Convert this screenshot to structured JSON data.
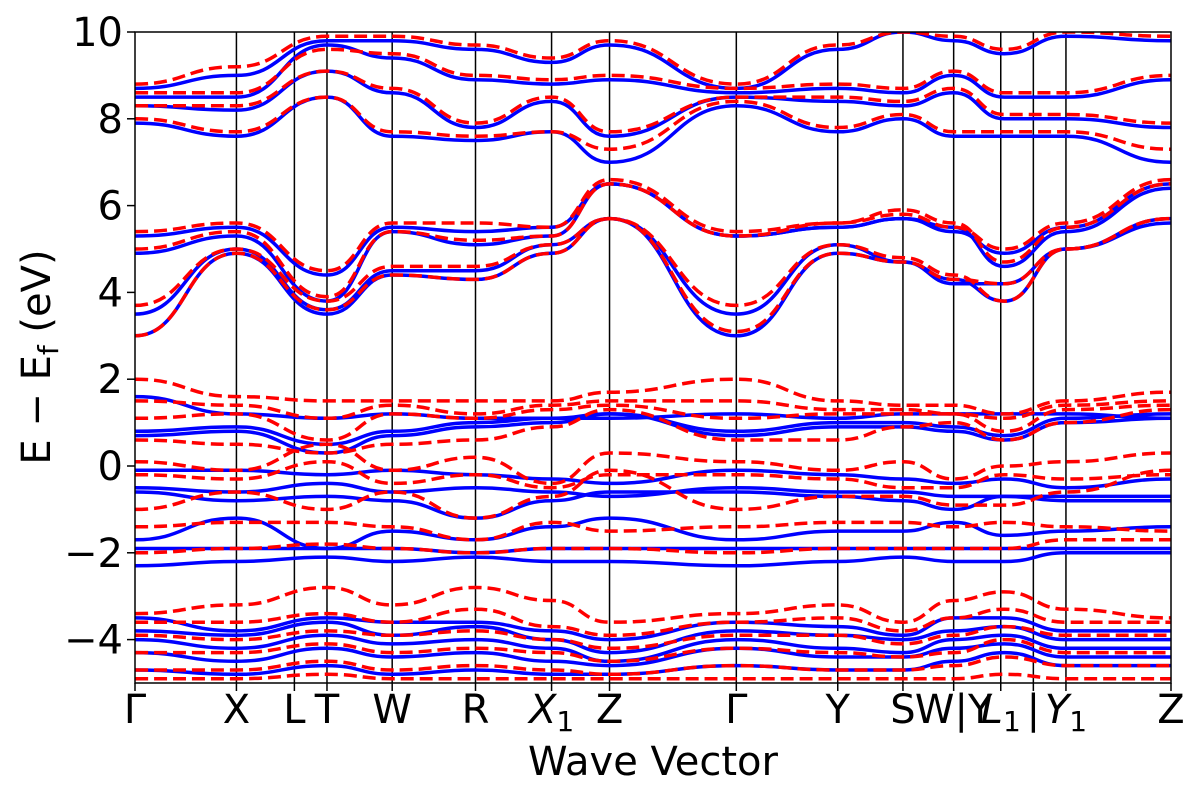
{
  "chart_data": {
    "type": "line",
    "xlabel": "Wave Vector",
    "ylabel": "E − E_f (eV)",
    "ylabel_parts": {
      "pre": "E − E",
      "sub": "f",
      "post": " (eV)"
    },
    "ylim": [
      -5,
      10
    ],
    "yticks": [
      -4,
      -2,
      0,
      2,
      4,
      6,
      8,
      10
    ],
    "ytick_labels": [
      "−4",
      "−2",
      "0",
      "2",
      "4",
      "6",
      "8",
      "10"
    ],
    "xlim": [
      0,
      14.3
    ],
    "kpoints": [
      {
        "label": "Γ",
        "pos": 0.0
      },
      {
        "label": "X",
        "pos": 1.4
      },
      {
        "label": "L",
        "pos": 2.2
      },
      {
        "label": "T",
        "pos": 2.65
      },
      {
        "label": "W",
        "pos": 3.55
      },
      {
        "label": "R",
        "pos": 4.7
      },
      {
        "label": "X",
        "sub": "1",
        "pos": 5.75
      },
      {
        "label": "Z",
        "pos": 6.55
      },
      {
        "label": "Γ",
        "pos": 8.3
      },
      {
        "label": "Y",
        "pos": 9.7
      },
      {
        "label": "S",
        "pos": 10.6
      },
      {
        "label": "W|Y",
        "pos": 11.3
      },
      {
        "label": "L",
        "sub": "1",
        "pos": 11.95
      },
      {
        "label": "|",
        "pos": 12.4
      },
      {
        "label": "Y",
        "sub": "1",
        "pos": 12.85
      },
      {
        "label": "Z",
        "pos": 14.3
      }
    ],
    "series": [
      {
        "color": "#0000ff",
        "dash": "solid"
      },
      {
        "color": "#ff0000",
        "dash": "dashed"
      }
    ],
    "band_anchors": [
      0,
      1.4,
      2.65,
      3.55,
      4.7,
      5.75,
      6.55,
      8.3,
      9.7,
      10.6,
      11.3,
      12.0,
      12.85,
      14.3
    ],
    "blue_bands": [
      [
        3.0,
        4.9,
        3.5,
        4.4,
        4.3,
        4.9,
        5.7,
        3.0,
        4.9,
        4.7,
        4.2,
        4.2,
        5.0,
        5.7
      ],
      [
        3.5,
        5.0,
        3.6,
        4.5,
        4.5,
        5.1,
        5.7,
        3.5,
        5.1,
        4.7,
        4.3,
        3.8,
        5.0,
        5.6
      ],
      [
        4.9,
        5.3,
        3.8,
        5.4,
        5.1,
        5.3,
        6.5,
        5.3,
        5.5,
        5.7,
        5.5,
        4.6,
        5.4,
        6.4
      ],
      [
        5.3,
        5.5,
        4.4,
        5.5,
        5.4,
        5.5,
        6.5,
        5.3,
        5.5,
        5.7,
        5.4,
        4.9,
        5.5,
        6.5
      ],
      [
        7.9,
        7.6,
        8.5,
        7.6,
        7.5,
        7.7,
        7.0,
        8.3,
        7.7,
        8.0,
        7.6,
        7.6,
        7.6,
        7.0
      ],
      [
        8.3,
        8.2,
        9.1,
        8.6,
        7.8,
        8.4,
        7.6,
        8.5,
        8.4,
        8.3,
        8.6,
        8.0,
        8.0,
        7.8
      ],
      [
        8.5,
        8.5,
        9.7,
        9.4,
        8.9,
        8.8,
        8.9,
        8.6,
        8.7,
        8.6,
        9.0,
        8.5,
        8.5,
        8.9
      ],
      [
        8.7,
        9.0,
        9.8,
        9.8,
        9.6,
        9.3,
        9.7,
        8.7,
        9.6,
        10.0,
        9.8,
        9.5,
        9.9,
        9.8
      ],
      [
        0.7,
        0.8,
        0.3,
        0.7,
        0.9,
        1.0,
        1.2,
        0.7,
        0.9,
        0.9,
        0.8,
        0.6,
        1.0,
        1.1
      ],
      [
        0.8,
        0.9,
        0.5,
        0.8,
        1.0,
        1.1,
        1.2,
        0.8,
        1.0,
        1.0,
        0.9,
        0.7,
        1.1,
        1.2
      ],
      [
        1.6,
        1.2,
        1.1,
        1.2,
        1.1,
        1.1,
        1.1,
        1.2,
        1.1,
        1.2,
        1.2,
        1.2,
        1.2,
        1.1
      ],
      [
        -0.1,
        -0.1,
        -0.2,
        -0.1,
        -0.2,
        -0.3,
        -0.4,
        -0.1,
        -0.2,
        -0.3,
        -0.4,
        -0.3,
        -0.5,
        -0.3
      ],
      [
        -0.5,
        -0.6,
        -0.4,
        -0.6,
        -0.5,
        -0.6,
        -0.7,
        -0.5,
        -0.6,
        -0.6,
        -0.7,
        -0.7,
        -0.7,
        -0.7
      ],
      [
        -0.6,
        -0.8,
        -0.7,
        -0.8,
        -1.2,
        -0.8,
        -0.6,
        -0.6,
        -0.7,
        -0.8,
        -1.0,
        -0.7,
        -0.8,
        -0.8
      ],
      [
        -1.7,
        -1.2,
        -1.9,
        -1.5,
        -1.7,
        -1.4,
        -1.2,
        -1.7,
        -1.5,
        -1.5,
        -1.3,
        -1.6,
        -1.5,
        -1.4
      ],
      [
        -1.9,
        -1.9,
        -1.9,
        -1.9,
        -2.0,
        -1.9,
        -1.9,
        -1.9,
        -1.9,
        -1.9,
        -1.9,
        -1.9,
        -1.9,
        -1.9
      ],
      [
        -2.3,
        -2.2,
        -2.1,
        -2.2,
        -2.1,
        -2.2,
        -2.2,
        -2.3,
        -2.2,
        -2.1,
        -2.2,
        -2.2,
        -2.0,
        -2.0
      ],
      [
        -3.5,
        -3.8,
        -3.5,
        -3.6,
        -3.6,
        -3.8,
        -4.0,
        -3.6,
        -3.7,
        -3.9,
        -3.5,
        -3.5,
        -3.8,
        -3.8
      ],
      [
        -3.8,
        -3.9,
        -3.6,
        -3.9,
        -3.7,
        -4.0,
        -4.3,
        -3.8,
        -3.9,
        -4.0,
        -3.8,
        -3.7,
        -4.0,
        -4.0
      ],
      [
        -4.0,
        -4.2,
        -3.9,
        -4.1,
        -4.0,
        -4.2,
        -4.5,
        -4.0,
        -4.2,
        -4.3,
        -4.0,
        -3.9,
        -4.2,
        -4.2
      ],
      [
        -4.3,
        -4.5,
        -4.2,
        -4.4,
        -4.3,
        -4.5,
        -4.6,
        -4.2,
        -4.4,
        -4.4,
        -4.2,
        -4.1,
        -4.4,
        -4.4
      ],
      [
        -4.7,
        -4.8,
        -4.6,
        -4.8,
        -4.7,
        -4.8,
        -4.8,
        -4.6,
        -4.7,
        -4.7,
        -4.5,
        -4.3,
        -4.6,
        -4.6
      ]
    ],
    "red_bands": [
      [
        3.0,
        4.9,
        3.6,
        4.4,
        4.3,
        4.9,
        5.7,
        3.1,
        4.9,
        4.7,
        4.3,
        4.2,
        5.0,
        5.7
      ],
      [
        3.7,
        5.0,
        3.8,
        4.6,
        4.6,
        5.1,
        5.7,
        3.7,
        5.1,
        4.8,
        4.4,
        3.8,
        5.0,
        5.7
      ],
      [
        5.0,
        5.4,
        3.9,
        5.4,
        5.2,
        5.3,
        6.5,
        5.3,
        5.6,
        5.9,
        5.6,
        4.7,
        5.5,
        6.5
      ],
      [
        5.4,
        5.6,
        4.5,
        5.6,
        5.6,
        5.5,
        6.6,
        5.4,
        5.6,
        5.8,
        5.5,
        5.0,
        5.6,
        6.6
      ],
      [
        8.0,
        7.7,
        8.5,
        7.7,
        7.6,
        7.7,
        7.3,
        8.4,
        7.8,
        8.1,
        7.7,
        7.7,
        7.7,
        7.3
      ],
      [
        8.3,
        8.3,
        9.1,
        8.7,
        7.9,
        8.5,
        7.7,
        8.5,
        8.5,
        8.4,
        8.7,
        8.1,
        8.1,
        7.9
      ],
      [
        8.6,
        8.6,
        9.6,
        9.5,
        9.0,
        8.9,
        9.0,
        8.7,
        8.8,
        8.7,
        9.1,
        8.6,
        8.6,
        9.0
      ],
      [
        8.8,
        9.2,
        9.9,
        9.9,
        9.7,
        9.4,
        9.8,
        8.8,
        9.7,
        10.0,
        9.9,
        9.6,
        10.0,
        9.9
      ],
      [
        2.0,
        1.6,
        1.5,
        1.5,
        1.5,
        1.5,
        1.7,
        2.0,
        1.5,
        1.4,
        1.4,
        1.2,
        1.5,
        1.7
      ],
      [
        1.5,
        1.4,
        1.1,
        1.4,
        1.2,
        1.4,
        1.5,
        1.5,
        1.3,
        1.3,
        1.2,
        1.1,
        1.4,
        1.5
      ],
      [
        1.1,
        1.2,
        0.6,
        1.2,
        1.1,
        1.3,
        1.4,
        1.1,
        1.2,
        1.2,
        1.2,
        0.8,
        1.3,
        1.4
      ],
      [
        0.6,
        0.5,
        0.3,
        0.5,
        0.6,
        0.9,
        1.3,
        0.6,
        0.6,
        0.9,
        1.0,
        0.6,
        1.0,
        1.3
      ],
      [
        0.1,
        -0.1,
        0.5,
        -0.1,
        0.2,
        -0.4,
        0.3,
        0.1,
        -0.1,
        0.1,
        -0.3,
        0.0,
        0.1,
        0.3
      ],
      [
        -0.2,
        -0.3,
        0.1,
        -0.4,
        -0.2,
        -0.5,
        -0.2,
        -0.2,
        -0.3,
        -0.5,
        -0.5,
        -0.2,
        -0.3,
        -0.2
      ],
      [
        -1.0,
        -0.6,
        -1.0,
        -0.6,
        -1.2,
        -0.7,
        -0.1,
        -1.0,
        -0.7,
        -0.7,
        -0.9,
        -0.9,
        -0.6,
        -0.1
      ],
      [
        -1.4,
        -1.3,
        -1.3,
        -1.4,
        -1.7,
        -1.3,
        -1.5,
        -1.4,
        -1.3,
        -1.3,
        -1.4,
        -1.3,
        -1.4,
        -1.5
      ],
      [
        -2.0,
        -1.9,
        -1.8,
        -1.9,
        -2.0,
        -1.9,
        -1.9,
        -2.0,
        -1.9,
        -1.9,
        -1.9,
        -1.9,
        -1.7,
        -1.7
      ],
      [
        -3.4,
        -3.2,
        -2.8,
        -3.2,
        -2.8,
        -3.1,
        -3.6,
        -3.4,
        -3.2,
        -3.6,
        -3.1,
        -2.9,
        -3.3,
        -3.5
      ],
      [
        -3.6,
        -3.6,
        -3.4,
        -3.6,
        -3.3,
        -3.7,
        -3.9,
        -3.6,
        -3.5,
        -3.8,
        -3.5,
        -3.3,
        -3.6,
        -3.6
      ],
      [
        -3.9,
        -4.0,
        -3.8,
        -3.9,
        -3.8,
        -4.0,
        -4.2,
        -3.9,
        -3.9,
        -4.1,
        -3.9,
        -3.7,
        -3.9,
        -3.9
      ],
      [
        -4.3,
        -4.3,
        -4.1,
        -4.3,
        -4.2,
        -4.3,
        -4.5,
        -4.2,
        -4.3,
        -4.4,
        -4.3,
        -4.0,
        -4.3,
        -4.3
      ],
      [
        -4.7,
        -4.7,
        -4.5,
        -4.7,
        -4.6,
        -4.7,
        -4.8,
        -4.6,
        -4.7,
        -4.7,
        -4.6,
        -4.4,
        -4.6,
        -4.6
      ],
      [
        -4.9,
        -4.9,
        -4.8,
        -4.9,
        -4.9,
        -4.9,
        -4.9,
        -4.9,
        -4.9,
        -4.9,
        -4.9,
        -4.8,
        -4.9,
        -4.9
      ]
    ]
  }
}
